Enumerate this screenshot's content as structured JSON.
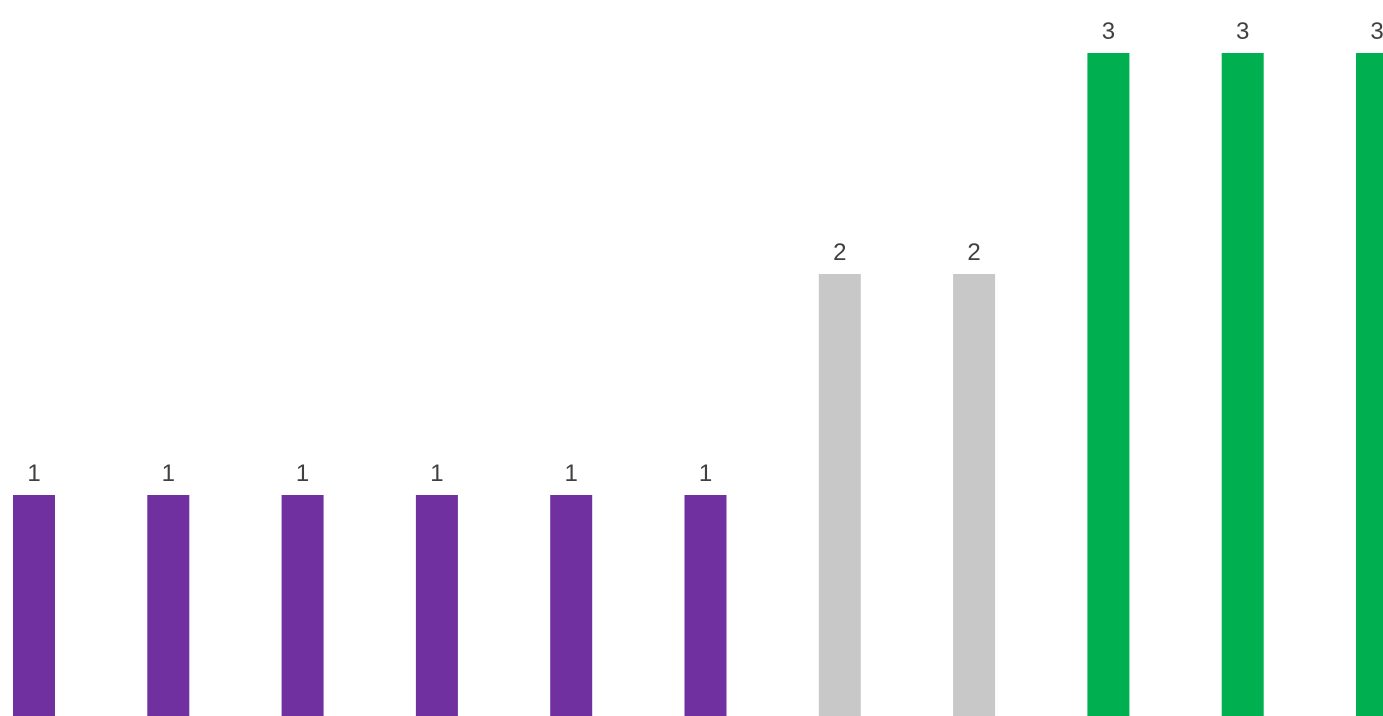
{
  "chart_data": {
    "type": "bar",
    "categories": [
      "",
      "",
      "",
      "",
      "",
      "",
      "",
      "",
      "",
      "",
      ""
    ],
    "values": [
      1,
      1,
      1,
      1,
      1,
      1,
      2,
      2,
      3,
      3,
      3
    ],
    "data_labels": [
      "1",
      "1",
      "1",
      "1",
      "1",
      "1",
      "2",
      "2",
      "3",
      "3",
      "3"
    ],
    "bar_colors": [
      "#7030a0",
      "#7030a0",
      "#7030a0",
      "#7030a0",
      "#7030a0",
      "#7030a0",
      "#c8c8c8",
      "#c8c8c8",
      "#00b050",
      "#00b050",
      "#00b050"
    ],
    "ylim": [
      0,
      3
    ],
    "grid": false,
    "legend": "none",
    "title": "",
    "xlabel": "",
    "ylabel": ""
  }
}
